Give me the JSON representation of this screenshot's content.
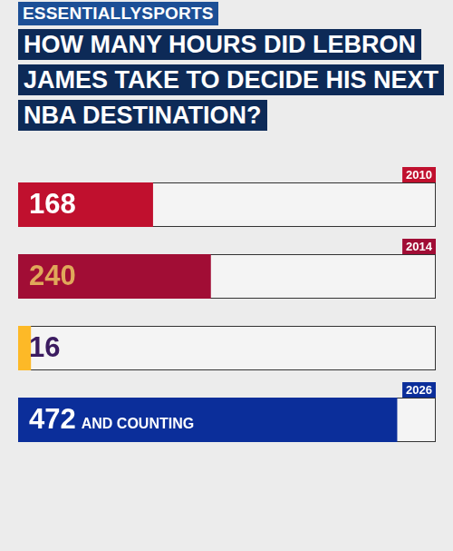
{
  "brand": "ESSENTIALLYSPORTS",
  "chart_data": {
    "type": "bar",
    "orientation": "horizontal",
    "title": "HOW MANY HOURS DID LEBRON JAMES TAKE TO DECIDE HIS NEXT NBA DESTINATION?",
    "categories": [
      "2010",
      "2014",
      null,
      "2026"
    ],
    "values": [
      168,
      240,
      16,
      472
    ],
    "value_labels": [
      "168",
      "240",
      "16",
      "472 AND COUNTING"
    ],
    "colors": [
      "#c0102e",
      "#a10d35",
      "#fdb927",
      "#0b2e9a"
    ],
    "xlim": [
      0,
      520
    ],
    "grid": false,
    "tick_labels": false,
    "data_labels": true
  }
}
